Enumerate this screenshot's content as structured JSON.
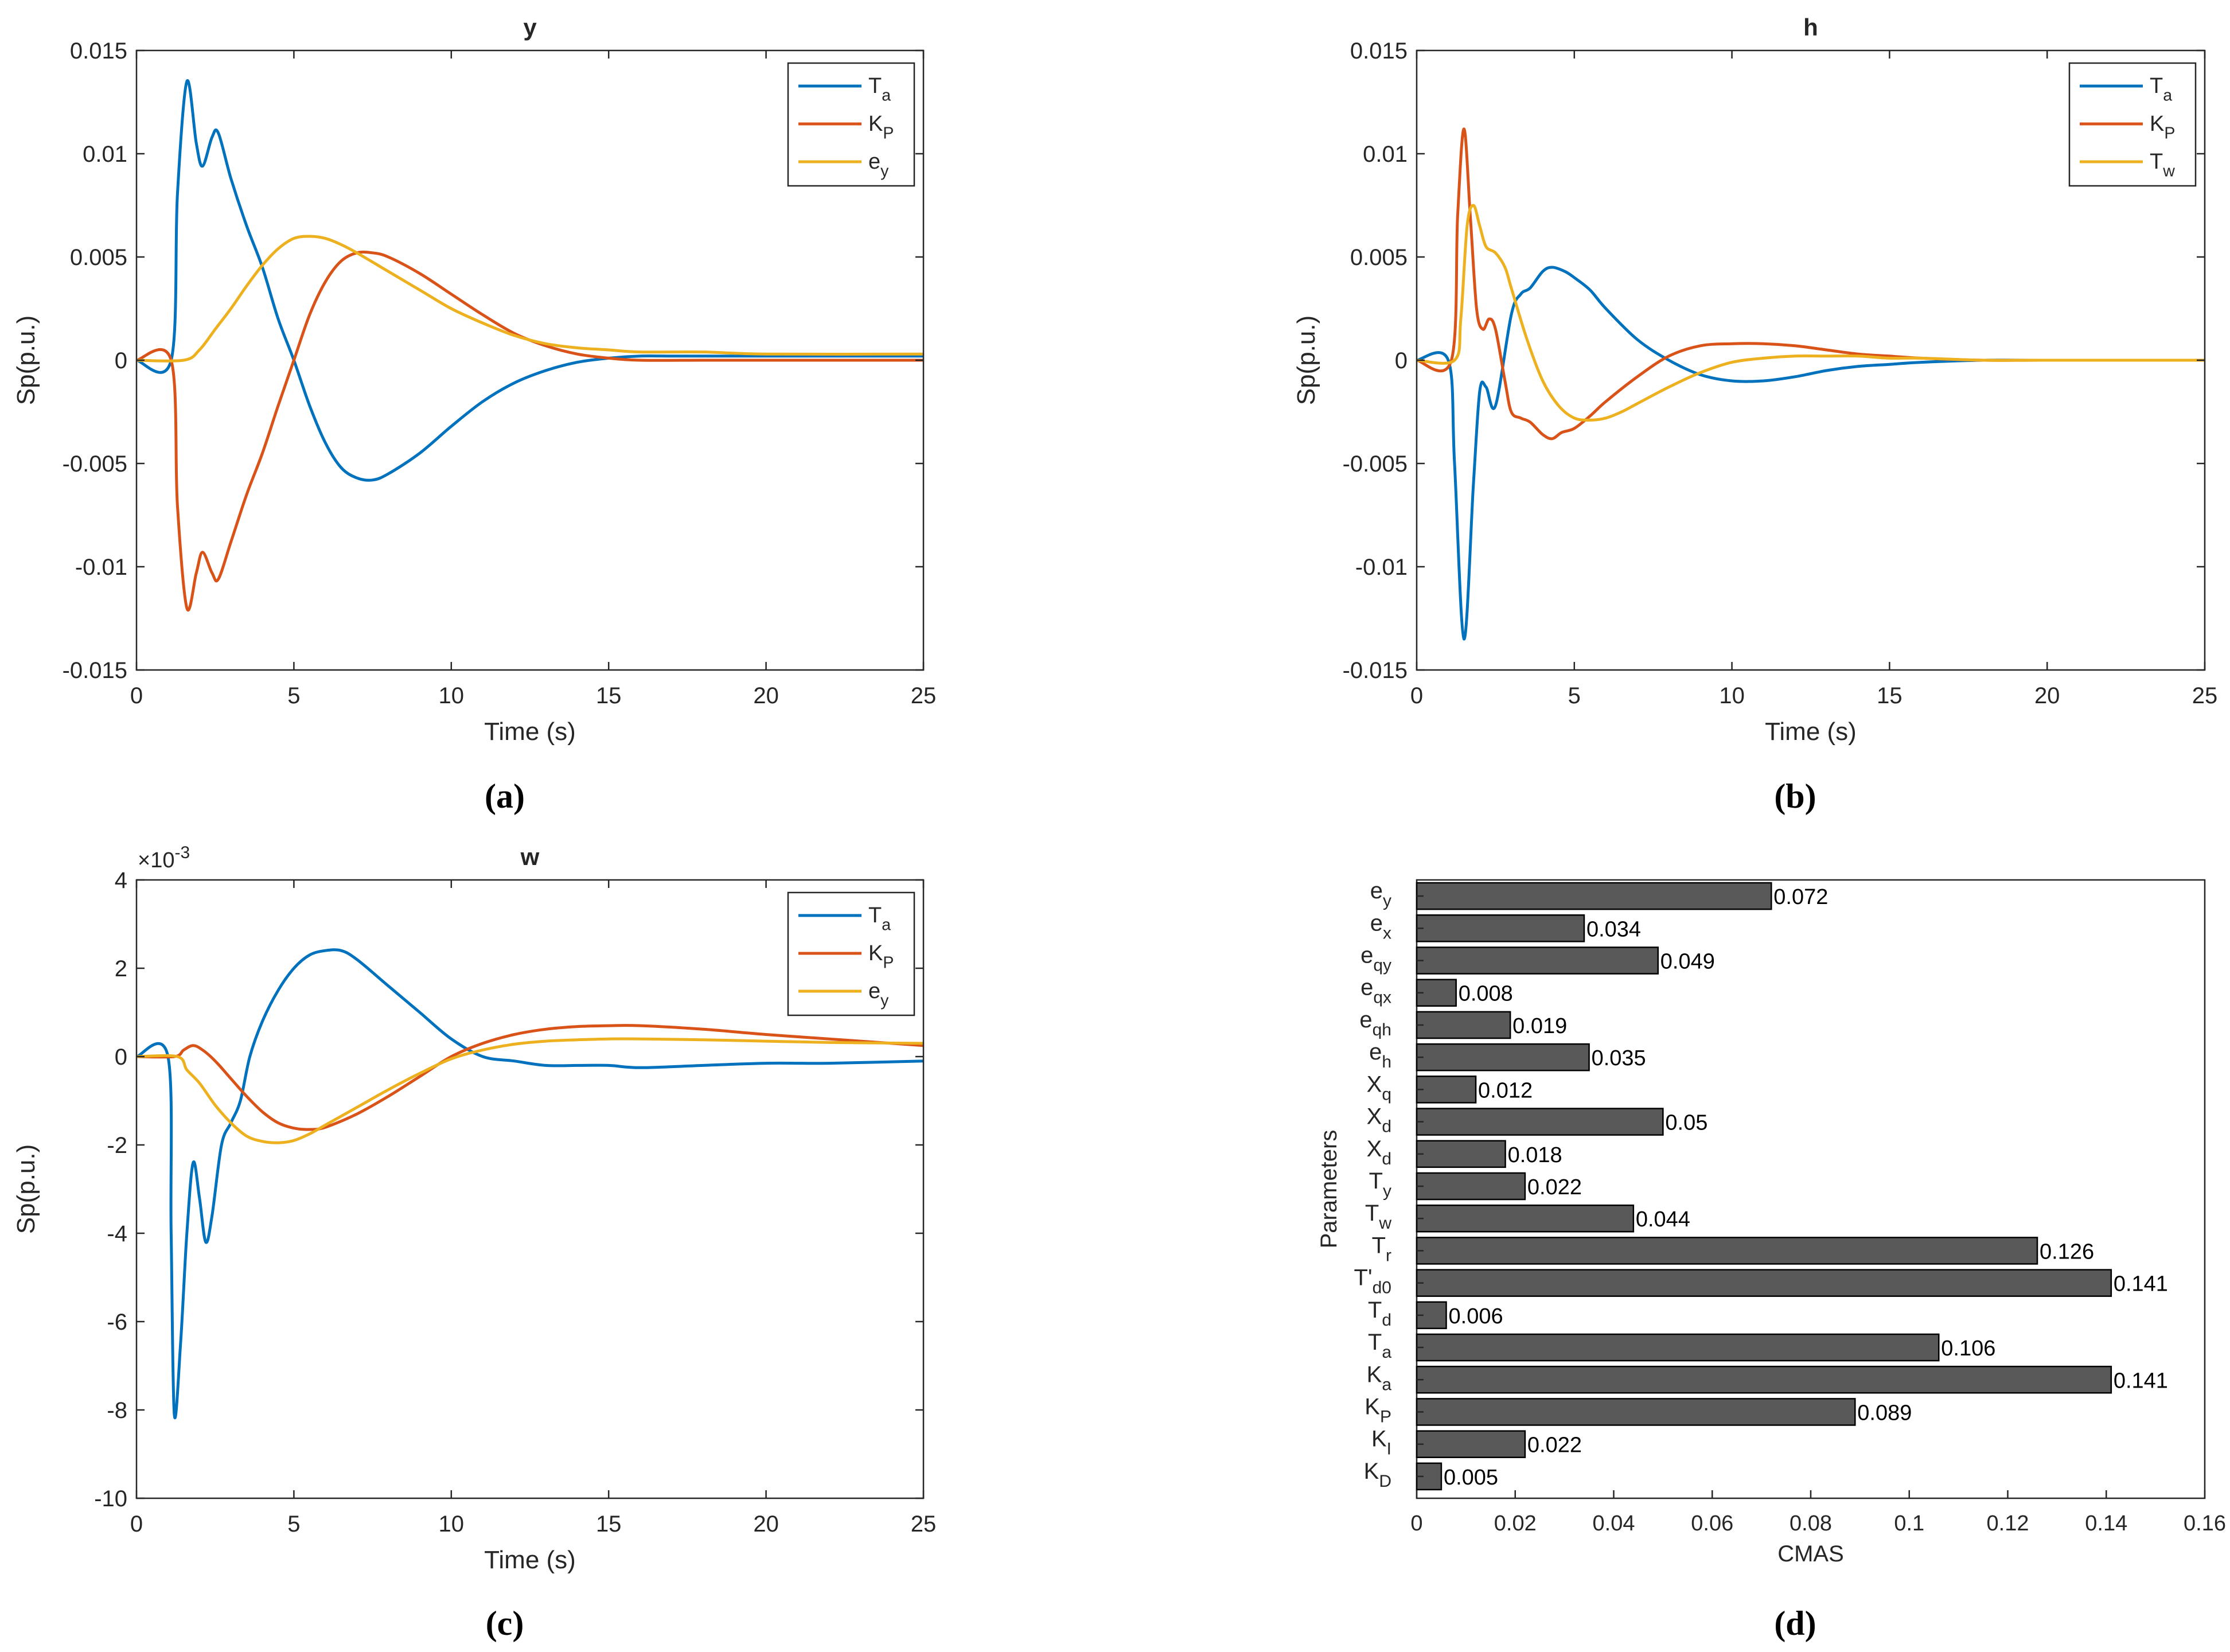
{
  "chart_data": [
    {
      "id": "a",
      "panel_label": "(a)",
      "type": "line",
      "title": "y",
      "xlabel": "Time (s)",
      "ylabel": "Sp(p.u.)",
      "exponent_label": "",
      "xlim": [
        0,
        25
      ],
      "ylim": [
        -0.015,
        0.015
      ],
      "xticks": [
        0,
        5,
        10,
        15,
        20,
        25
      ],
      "xtick_labels": [
        "0",
        "5",
        "10",
        "15",
        "20",
        "25"
      ],
      "yticks": [
        -0.015,
        -0.01,
        -0.005,
        0,
        0.005,
        0.01,
        0.015
      ],
      "ytick_labels": [
        "-0.015",
        "-0.01",
        "-0.005",
        "0",
        "0.005",
        "0.01",
        "0.015"
      ],
      "legend_position": "top-right",
      "series": [
        {
          "name": "Ta",
          "label_main": "T",
          "label_sub": "a",
          "color": "#0072BD",
          "x": [
            0,
            1.1,
            1.3,
            1.6,
            1.9,
            2.1,
            2.4,
            2.6,
            3.0,
            3.5,
            4.0,
            4.5,
            5.0,
            5.5,
            6.0,
            6.5,
            7.0,
            7.5,
            8.0,
            9.0,
            10.0,
            11.0,
            12.0,
            13.0,
            14.0,
            15.0,
            16.0,
            17.0,
            18.0,
            20.0,
            22.0,
            25.0
          ],
          "y": [
            0,
            0,
            0.008,
            0.0135,
            0.0105,
            0.0094,
            0.0108,
            0.011,
            0.0088,
            0.0065,
            0.0045,
            0.002,
            0.0,
            -0.0022,
            -0.004,
            -0.0052,
            -0.0057,
            -0.0058,
            -0.0055,
            -0.0045,
            -0.0032,
            -0.002,
            -0.0011,
            -0.0005,
            -0.0001,
            0.0001,
            0.0002,
            0.0002,
            0.0002,
            0.0002,
            0.0002,
            0.0002
          ]
        },
        {
          "name": "KP",
          "label_main": "K",
          "label_sub": "P",
          "color": "#D95319",
          "x": [
            0,
            1.1,
            1.3,
            1.6,
            1.9,
            2.1,
            2.4,
            2.6,
            3.0,
            3.5,
            4.0,
            4.5,
            5.0,
            5.5,
            6.0,
            6.5,
            7.0,
            7.5,
            8.0,
            9.0,
            10.0,
            11.0,
            12.0,
            13.0,
            14.0,
            15.0,
            16.0,
            18.0,
            20.0,
            25.0
          ],
          "y": [
            0,
            0,
            -0.007,
            -0.012,
            -0.0103,
            -0.0093,
            -0.0103,
            -0.0106,
            -0.0088,
            -0.0065,
            -0.0045,
            -0.0022,
            0.0,
            0.0022,
            0.0038,
            0.0048,
            0.0052,
            0.0052,
            0.005,
            0.0042,
            0.0032,
            0.0022,
            0.0013,
            0.0007,
            0.0003,
            0.0001,
            0.0,
            0.0,
            0.0,
            0.0
          ]
        },
        {
          "name": "ey",
          "label_main": "e",
          "label_sub": "y",
          "color": "#EDB120",
          "x": [
            0,
            1.5,
            2.0,
            2.5,
            3.0,
            3.5,
            4.0,
            4.5,
            5.0,
            5.5,
            6.0,
            6.5,
            7.0,
            8.0,
            9.0,
            10.0,
            11.0,
            12.0,
            13.0,
            14.0,
            15.0,
            16.0,
            18.0,
            20.0,
            25.0
          ],
          "y": [
            0,
            0,
            0.0005,
            0.0015,
            0.0025,
            0.0036,
            0.0046,
            0.0054,
            0.0059,
            0.006,
            0.0059,
            0.0056,
            0.0052,
            0.0043,
            0.0034,
            0.0025,
            0.0018,
            0.0012,
            0.0008,
            0.0006,
            0.0005,
            0.0004,
            0.0004,
            0.0003,
            0.0003
          ]
        }
      ]
    },
    {
      "id": "b",
      "panel_label": "(b)",
      "type": "line",
      "title": "h",
      "xlabel": "Time (s)",
      "ylabel": "Sp(p.u.)",
      "exponent_label": "",
      "xlim": [
        0,
        25
      ],
      "ylim": [
        -0.015,
        0.015
      ],
      "xticks": [
        0,
        5,
        10,
        15,
        20,
        25
      ],
      "xtick_labels": [
        "0",
        "5",
        "10",
        "15",
        "20",
        "25"
      ],
      "yticks": [
        -0.015,
        -0.01,
        -0.005,
        0,
        0.005,
        0.01,
        0.015
      ],
      "ytick_labels": [
        "-0.015",
        "-0.01",
        "-0.005",
        "0",
        "0.005",
        "0.01",
        "0.015"
      ],
      "legend_position": "top-right",
      "series": [
        {
          "name": "Ta",
          "label_main": "T",
          "label_sub": "a",
          "color": "#0072BD",
          "x": [
            0,
            1.0,
            1.2,
            1.5,
            1.8,
            2.0,
            2.2,
            2.5,
            3.0,
            3.3,
            3.6,
            4.0,
            4.3,
            4.7,
            5.0,
            5.5,
            6.0,
            7.0,
            8.0,
            9.0,
            10.0,
            11.0,
            12.0,
            13.0,
            14.0,
            15.0,
            16.0,
            18.0,
            20.0,
            25.0
          ],
          "y": [
            0,
            0,
            -0.005,
            -0.0135,
            -0.006,
            -0.0015,
            -0.0013,
            -0.0022,
            0.0022,
            0.0032,
            0.0035,
            0.0043,
            0.0045,
            0.0043,
            0.004,
            0.0034,
            0.0025,
            0.001,
            0.0,
            -0.0007,
            -0.001,
            -0.001,
            -0.0008,
            -0.0005,
            -0.0003,
            -0.0002,
            -0.0001,
            0.0,
            0.0,
            0.0
          ]
        },
        {
          "name": "KP",
          "label_main": "K",
          "label_sub": "P",
          "color": "#D95319",
          "x": [
            0,
            1.1,
            1.3,
            1.5,
            1.7,
            1.9,
            2.1,
            2.3,
            2.5,
            2.8,
            3.0,
            3.3,
            3.6,
            4.0,
            4.3,
            4.6,
            5.0,
            5.5,
            6.0,
            7.0,
            8.0,
            9.0,
            10.0,
            11.0,
            12.0,
            13.0,
            14.0,
            15.0,
            16.0,
            18.0,
            20.0,
            25.0
          ],
          "y": [
            0,
            0,
            0.007,
            0.0112,
            0.007,
            0.0025,
            0.0015,
            0.002,
            0.0015,
            -0.001,
            -0.0025,
            -0.0028,
            -0.003,
            -0.0036,
            -0.0038,
            -0.0035,
            -0.0033,
            -0.0027,
            -0.002,
            -0.0008,
            0.0002,
            0.0007,
            0.0008,
            0.0008,
            0.0007,
            0.0005,
            0.0003,
            0.0002,
            0.0001,
            0.0,
            0.0,
            0.0
          ]
        },
        {
          "name": "Tw",
          "label_main": "T",
          "label_sub": "w",
          "color": "#EDB120",
          "x": [
            0,
            1.2,
            1.4,
            1.6,
            1.8,
            2.0,
            2.2,
            2.5,
            2.8,
            3.0,
            3.5,
            4.0,
            4.5,
            5.0,
            5.5,
            6.0,
            6.5,
            7.0,
            8.0,
            9.0,
            10.0,
            11.0,
            12.0,
            13.0,
            14.0,
            15.0,
            16.0,
            18.0,
            20.0,
            25.0
          ],
          "y": [
            0,
            0,
            0.002,
            0.0065,
            0.0075,
            0.0065,
            0.0055,
            0.0052,
            0.0045,
            0.0035,
            0.001,
            -0.001,
            -0.0022,
            -0.0028,
            -0.0029,
            -0.0028,
            -0.0025,
            -0.0021,
            -0.0013,
            -0.0006,
            -0.0001,
            0.0001,
            0.0002,
            0.0002,
            0.0002,
            0.0001,
            0.0001,
            0.0,
            0.0,
            0.0
          ]
        }
      ]
    },
    {
      "id": "c",
      "panel_label": "(c)",
      "type": "line",
      "title": "w",
      "xlabel": "Time (s)",
      "ylabel": "Sp(p.u.)",
      "exponent_label": "×10",
      "exponent_power": "-3",
      "xlim": [
        0,
        25
      ],
      "ylim": [
        -10,
        4
      ],
      "xticks": [
        0,
        5,
        10,
        15,
        20,
        25
      ],
      "xtick_labels": [
        "0",
        "5",
        "10",
        "15",
        "20",
        "25"
      ],
      "yticks": [
        -10,
        -8,
        -6,
        -4,
        -2,
        0,
        2,
        4
      ],
      "ytick_labels": [
        "-10",
        "-8",
        "-6",
        "-4",
        "-2",
        "0",
        "2",
        "4"
      ],
      "legend_position": "top-right",
      "series": [
        {
          "name": "Ta",
          "label_main": "T",
          "label_sub": "a",
          "color": "#0072BD",
          "x": [
            0,
            1.0,
            1.1,
            1.2,
            1.4,
            1.6,
            1.8,
            2.0,
            2.2,
            2.4,
            2.7,
            3.0,
            3.3,
            3.6,
            4.0,
            4.5,
            5.0,
            5.5,
            6.0,
            6.5,
            7.0,
            8.0,
            9.0,
            10.0,
            11.0,
            12.0,
            13.0,
            14.0,
            15.0,
            16.0,
            18.0,
            20.0,
            22.0,
            25.0
          ],
          "y": [
            0,
            0,
            -4.0,
            -8.1,
            -6.5,
            -4.0,
            -2.4,
            -3.2,
            -4.2,
            -3.6,
            -2.0,
            -1.5,
            -1.0,
            0.0,
            0.8,
            1.5,
            2.0,
            2.3,
            2.4,
            2.4,
            2.2,
            1.6,
            1.0,
            0.4,
            0.0,
            -0.1,
            -0.2,
            -0.2,
            -0.2,
            -0.25,
            -0.2,
            -0.15,
            -0.15,
            -0.1
          ]
        },
        {
          "name": "KP",
          "label_main": "K",
          "label_sub": "P",
          "color": "#D95319",
          "x": [
            0,
            1.2,
            1.5,
            1.8,
            2.1,
            2.5,
            3.0,
            3.5,
            4.0,
            4.5,
            5.0,
            5.5,
            6.0,
            7.0,
            8.0,
            9.0,
            10.0,
            11.0,
            12.0,
            13.0,
            14.0,
            15.0,
            16.0,
            18.0,
            20.0,
            22.0,
            25.0
          ],
          "y": [
            0,
            0,
            0.15,
            0.25,
            0.15,
            -0.1,
            -0.5,
            -0.9,
            -1.25,
            -1.5,
            -1.62,
            -1.65,
            -1.6,
            -1.3,
            -0.9,
            -0.45,
            0.0,
            0.3,
            0.5,
            0.62,
            0.68,
            0.7,
            0.7,
            0.62,
            0.5,
            0.4,
            0.25
          ]
        },
        {
          "name": "ey",
          "label_main": "e",
          "label_sub": "y",
          "color": "#EDB120",
          "x": [
            0,
            1.3,
            1.6,
            2.0,
            2.5,
            3.0,
            3.5,
            4.0,
            4.5,
            5.0,
            5.5,
            6.0,
            7.0,
            8.0,
            9.0,
            10.0,
            11.0,
            12.0,
            13.0,
            14.0,
            15.0,
            16.0,
            18.0,
            20.0,
            22.0,
            25.0
          ],
          "y": [
            0,
            0,
            -0.3,
            -0.6,
            -1.1,
            -1.5,
            -1.8,
            -1.92,
            -1.95,
            -1.9,
            -1.75,
            -1.55,
            -1.15,
            -0.75,
            -0.38,
            -0.05,
            0.15,
            0.28,
            0.35,
            0.38,
            0.4,
            0.4,
            0.38,
            0.35,
            0.32,
            0.3
          ]
        }
      ]
    },
    {
      "id": "d",
      "panel_label": "(d)",
      "type": "bar",
      "orientation": "horizontal",
      "title": "",
      "xlabel": "CMAS",
      "ylabel": "Parameters",
      "xlim": [
        0,
        0.16
      ],
      "xticks": [
        0,
        0.02,
        0.04,
        0.06,
        0.08,
        0.1,
        0.12,
        0.14,
        0.16
      ],
      "xtick_labels": [
        "0",
        "0.02",
        "0.04",
        "0.06",
        "0.08",
        "0.1",
        "0.12",
        "0.14",
        "0.16"
      ],
      "bar_color": "#595959",
      "categories": [
        {
          "main": "e",
          "sub": "y",
          "value": 0.072,
          "value_label": "0.072"
        },
        {
          "main": "e",
          "sub": "x",
          "value": 0.034,
          "value_label": "0.034"
        },
        {
          "main": "e",
          "sub": "qy",
          "value": 0.049,
          "value_label": "0.049"
        },
        {
          "main": "e",
          "sub": "qx",
          "value": 0.008,
          "value_label": "0.008"
        },
        {
          "main": "e",
          "sub": "qh",
          "value": 0.019,
          "value_label": "0.019"
        },
        {
          "main": "e",
          "sub": "h",
          "value": 0.035,
          "value_label": "0.035"
        },
        {
          "main": "X",
          "sub": "q",
          "value": 0.012,
          "value_label": "0.012"
        },
        {
          "main": "X",
          "sub": "d",
          "value": 0.05,
          "value_label": " 0.05"
        },
        {
          "main": "X",
          "sub": "d",
          "value": 0.018,
          "value_label": "0.018"
        },
        {
          "main": "T",
          "sub": "y",
          "value": 0.022,
          "value_label": "0.022"
        },
        {
          "main": "T",
          "sub": "w",
          "value": 0.044,
          "value_label": "0.044"
        },
        {
          "main": "T",
          "sub": "r",
          "value": 0.126,
          "value_label": "0.126"
        },
        {
          "main": "T'",
          "sub": "d0",
          "value": 0.141,
          "value_label": "0.141"
        },
        {
          "main": "T",
          "sub": "d",
          "value": 0.006,
          "value_label": "0.006"
        },
        {
          "main": "T",
          "sub": "a",
          "value": 0.106,
          "value_label": "0.106"
        },
        {
          "main": "K",
          "sub": "a",
          "value": 0.141,
          "value_label": "0.141"
        },
        {
          "main": "K",
          "sub": "P",
          "value": 0.089,
          "value_label": "0.089"
        },
        {
          "main": "K",
          "sub": "I",
          "value": 0.022,
          "value_label": "0.022"
        },
        {
          "main": "K",
          "sub": "D",
          "value": 0.005,
          "value_label": "0.005"
        }
      ]
    }
  ]
}
